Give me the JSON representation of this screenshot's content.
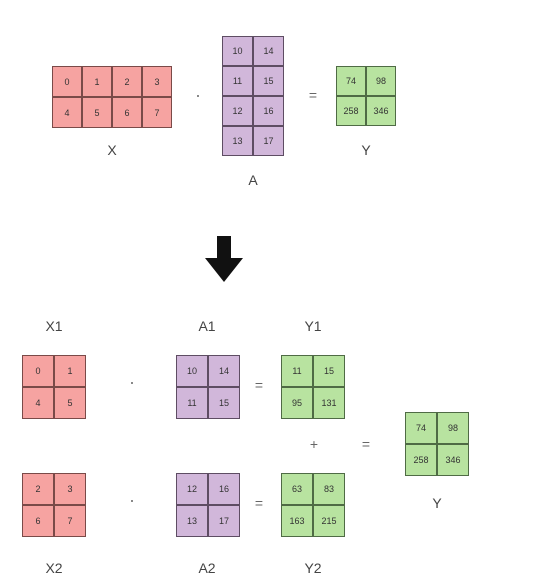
{
  "top": {
    "X": {
      "label": "X",
      "rows": [
        [
          "0",
          "1",
          "2",
          "3"
        ],
        [
          "4",
          "5",
          "6",
          "7"
        ]
      ]
    },
    "A": {
      "label": "A",
      "rows": [
        [
          "10",
          "14"
        ],
        [
          "11",
          "15"
        ],
        [
          "12",
          "16"
        ],
        [
          "13",
          "17"
        ]
      ]
    },
    "Y": {
      "label": "Y",
      "rows": [
        [
          "74",
          "98"
        ],
        [
          "258",
          "346"
        ]
      ]
    },
    "dot": "·",
    "equals": "="
  },
  "arrow_icon": "down-arrow-icon",
  "bottom": {
    "X1": {
      "label": "X1",
      "rows": [
        [
          "0",
          "1"
        ],
        [
          "4",
          "5"
        ]
      ]
    },
    "A1": {
      "label": "A1",
      "rows": [
        [
          "10",
          "14"
        ],
        [
          "11",
          "15"
        ]
      ]
    },
    "Y1": {
      "label": "Y1",
      "rows": [
        [
          "11",
          "15"
        ],
        [
          "95",
          "131"
        ]
      ]
    },
    "X2": {
      "label": "X2",
      "rows": [
        [
          "2",
          "3"
        ],
        [
          "6",
          "7"
        ]
      ]
    },
    "A2": {
      "label": "A2",
      "rows": [
        [
          "12",
          "16"
        ],
        [
          "13",
          "17"
        ]
      ]
    },
    "Y2": {
      "label": "Y2",
      "rows": [
        [
          "63",
          "83"
        ],
        [
          "163",
          "215"
        ]
      ]
    },
    "Y": {
      "label": "Y",
      "rows": [
        [
          "74",
          "98"
        ],
        [
          "258",
          "346"
        ]
      ]
    },
    "dot": "·",
    "equals": "=",
    "plus": "+"
  },
  "colors": {
    "red": "#f6a3a1",
    "purple": "#d1b7da",
    "green": "#b8e3a0"
  }
}
